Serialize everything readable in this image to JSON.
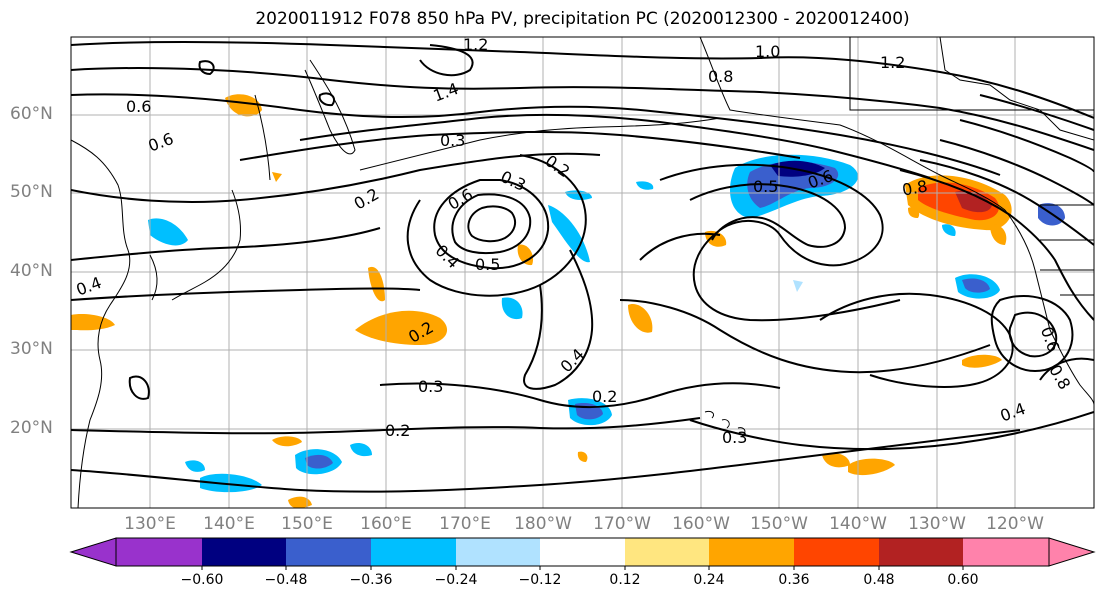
{
  "title": "2020011912 F078 850 hPa PV, precipitation PC (2020012300 - 2020012400)",
  "lat_labels": [
    "60°N",
    "50°N",
    "40°N",
    "30°N",
    "20°N"
  ],
  "lon_labels": [
    "130°E",
    "140°E",
    "150°E",
    "160°E",
    "170°E",
    "180°W",
    "170°W",
    "160°W",
    "150°W",
    "140°W",
    "130°W",
    "120°W"
  ],
  "contour_labels": [
    "1.2",
    "1.0",
    "1.2",
    "0.8",
    "1.4",
    "0.6",
    "0.3",
    "0.2",
    "0.2",
    "0.3",
    "0.6",
    "0.4",
    "0.5",
    "0.2",
    "0.3",
    "0.2",
    "0.5",
    "0.6",
    "0.4",
    "0.2",
    "0.3",
    "0.4",
    "0.6",
    "0.4",
    "0.6",
    "0.8",
    "0.8"
  ],
  "colorbar": {
    "ticks": [
      "−0.60",
      "−0.48",
      "−0.36",
      "−0.24",
      "−0.12",
      "0.12",
      "0.24",
      "0.36",
      "0.48",
      "0.60"
    ],
    "colors": [
      "#9932cc",
      "#000080",
      "#3a5fcd",
      "#00bfff",
      "#b0e2ff",
      "#ffffff",
      "#ffe680",
      "#ffa500",
      "#ff4500",
      "#b22222",
      "#ff82ab"
    ]
  }
}
